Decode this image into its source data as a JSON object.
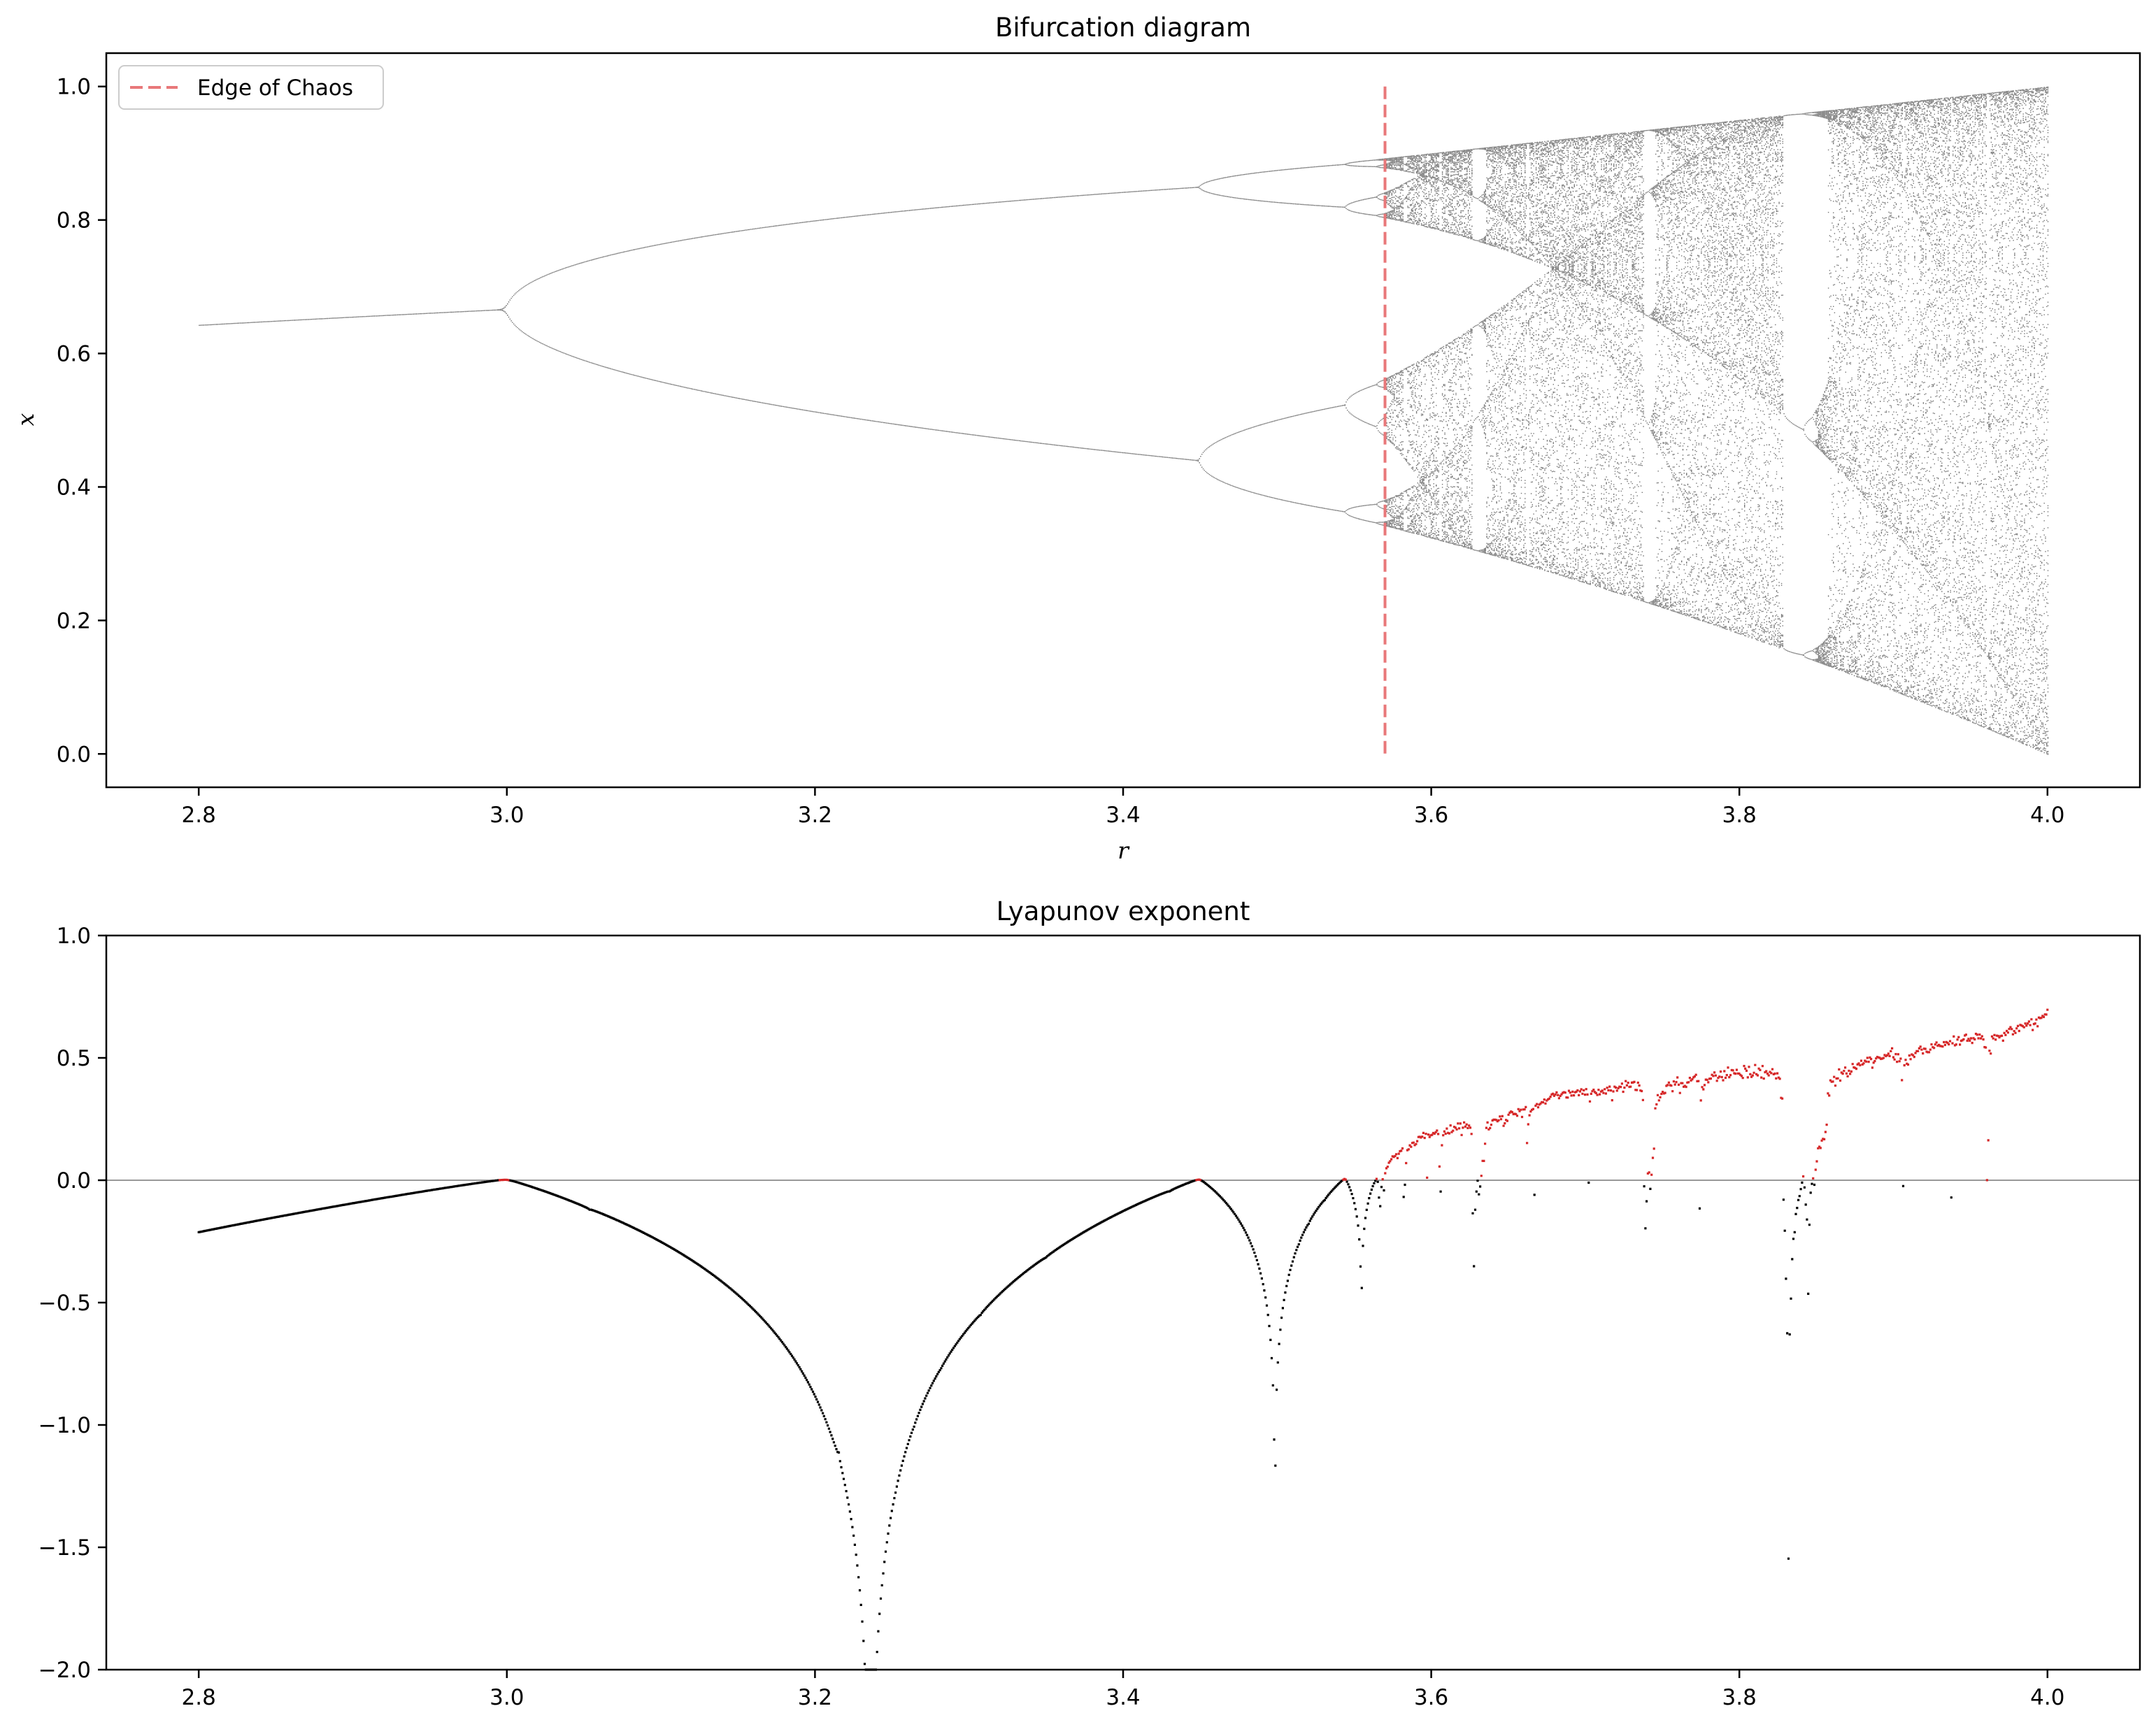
{
  "chart_data": [
    {
      "type": "scatter",
      "title": "Bifurcation diagram",
      "xlabel": "r",
      "ylabel": "x",
      "xlim": [
        2.74,
        4.06
      ],
      "ylim": [
        -0.05,
        1.05
      ],
      "xticks": [
        "2.8",
        "3.0",
        "3.2",
        "3.4",
        "3.6",
        "3.8",
        "4.0"
      ],
      "yticks": [
        "0.0",
        "0.2",
        "0.4",
        "0.6",
        "0.8",
        "1.0"
      ],
      "series": [
        {
          "kind": "scatter",
          "color": "#000000",
          "description_source": "logistic map x_{n+1}=r x_n (1-x_n), r from 2.8 to 4.0",
          "r_range": [
            2.8,
            4.0
          ]
        }
      ],
      "annotations": [
        {
          "kind": "vline",
          "name": "Edge of Chaos",
          "x": 3.57,
          "y_range": [
            0.0,
            1.0
          ],
          "color": "#e8787a",
          "style": "dashed"
        }
      ],
      "legend": {
        "entries": [
          "Edge of Chaos"
        ],
        "placement": "upper-left"
      },
      "grid": false
    },
    {
      "type": "scatter",
      "title": "Lyapunov exponent",
      "xlim": [
        2.74,
        4.06
      ],
      "ylim": [
        -2.0,
        1.0
      ],
      "xticks": [
        "2.8",
        "3.0",
        "3.2",
        "3.4",
        "3.6",
        "3.8",
        "4.0"
      ],
      "yticks": [
        "−2.0",
        "−1.5",
        "−1.0",
        "−0.5",
        "0.0",
        "0.5",
        "1.0"
      ],
      "series": [
        {
          "kind": "scatter",
          "color": "#000000",
          "condition": "lyapunov < 0"
        },
        {
          "kind": "scatter",
          "color": "#d62728",
          "condition": "lyapunov >= 0"
        }
      ],
      "reference_line": {
        "y": 0.0,
        "color": "#999999"
      },
      "r_range": [
        2.8,
        4.0
      ],
      "grid": false
    }
  ]
}
